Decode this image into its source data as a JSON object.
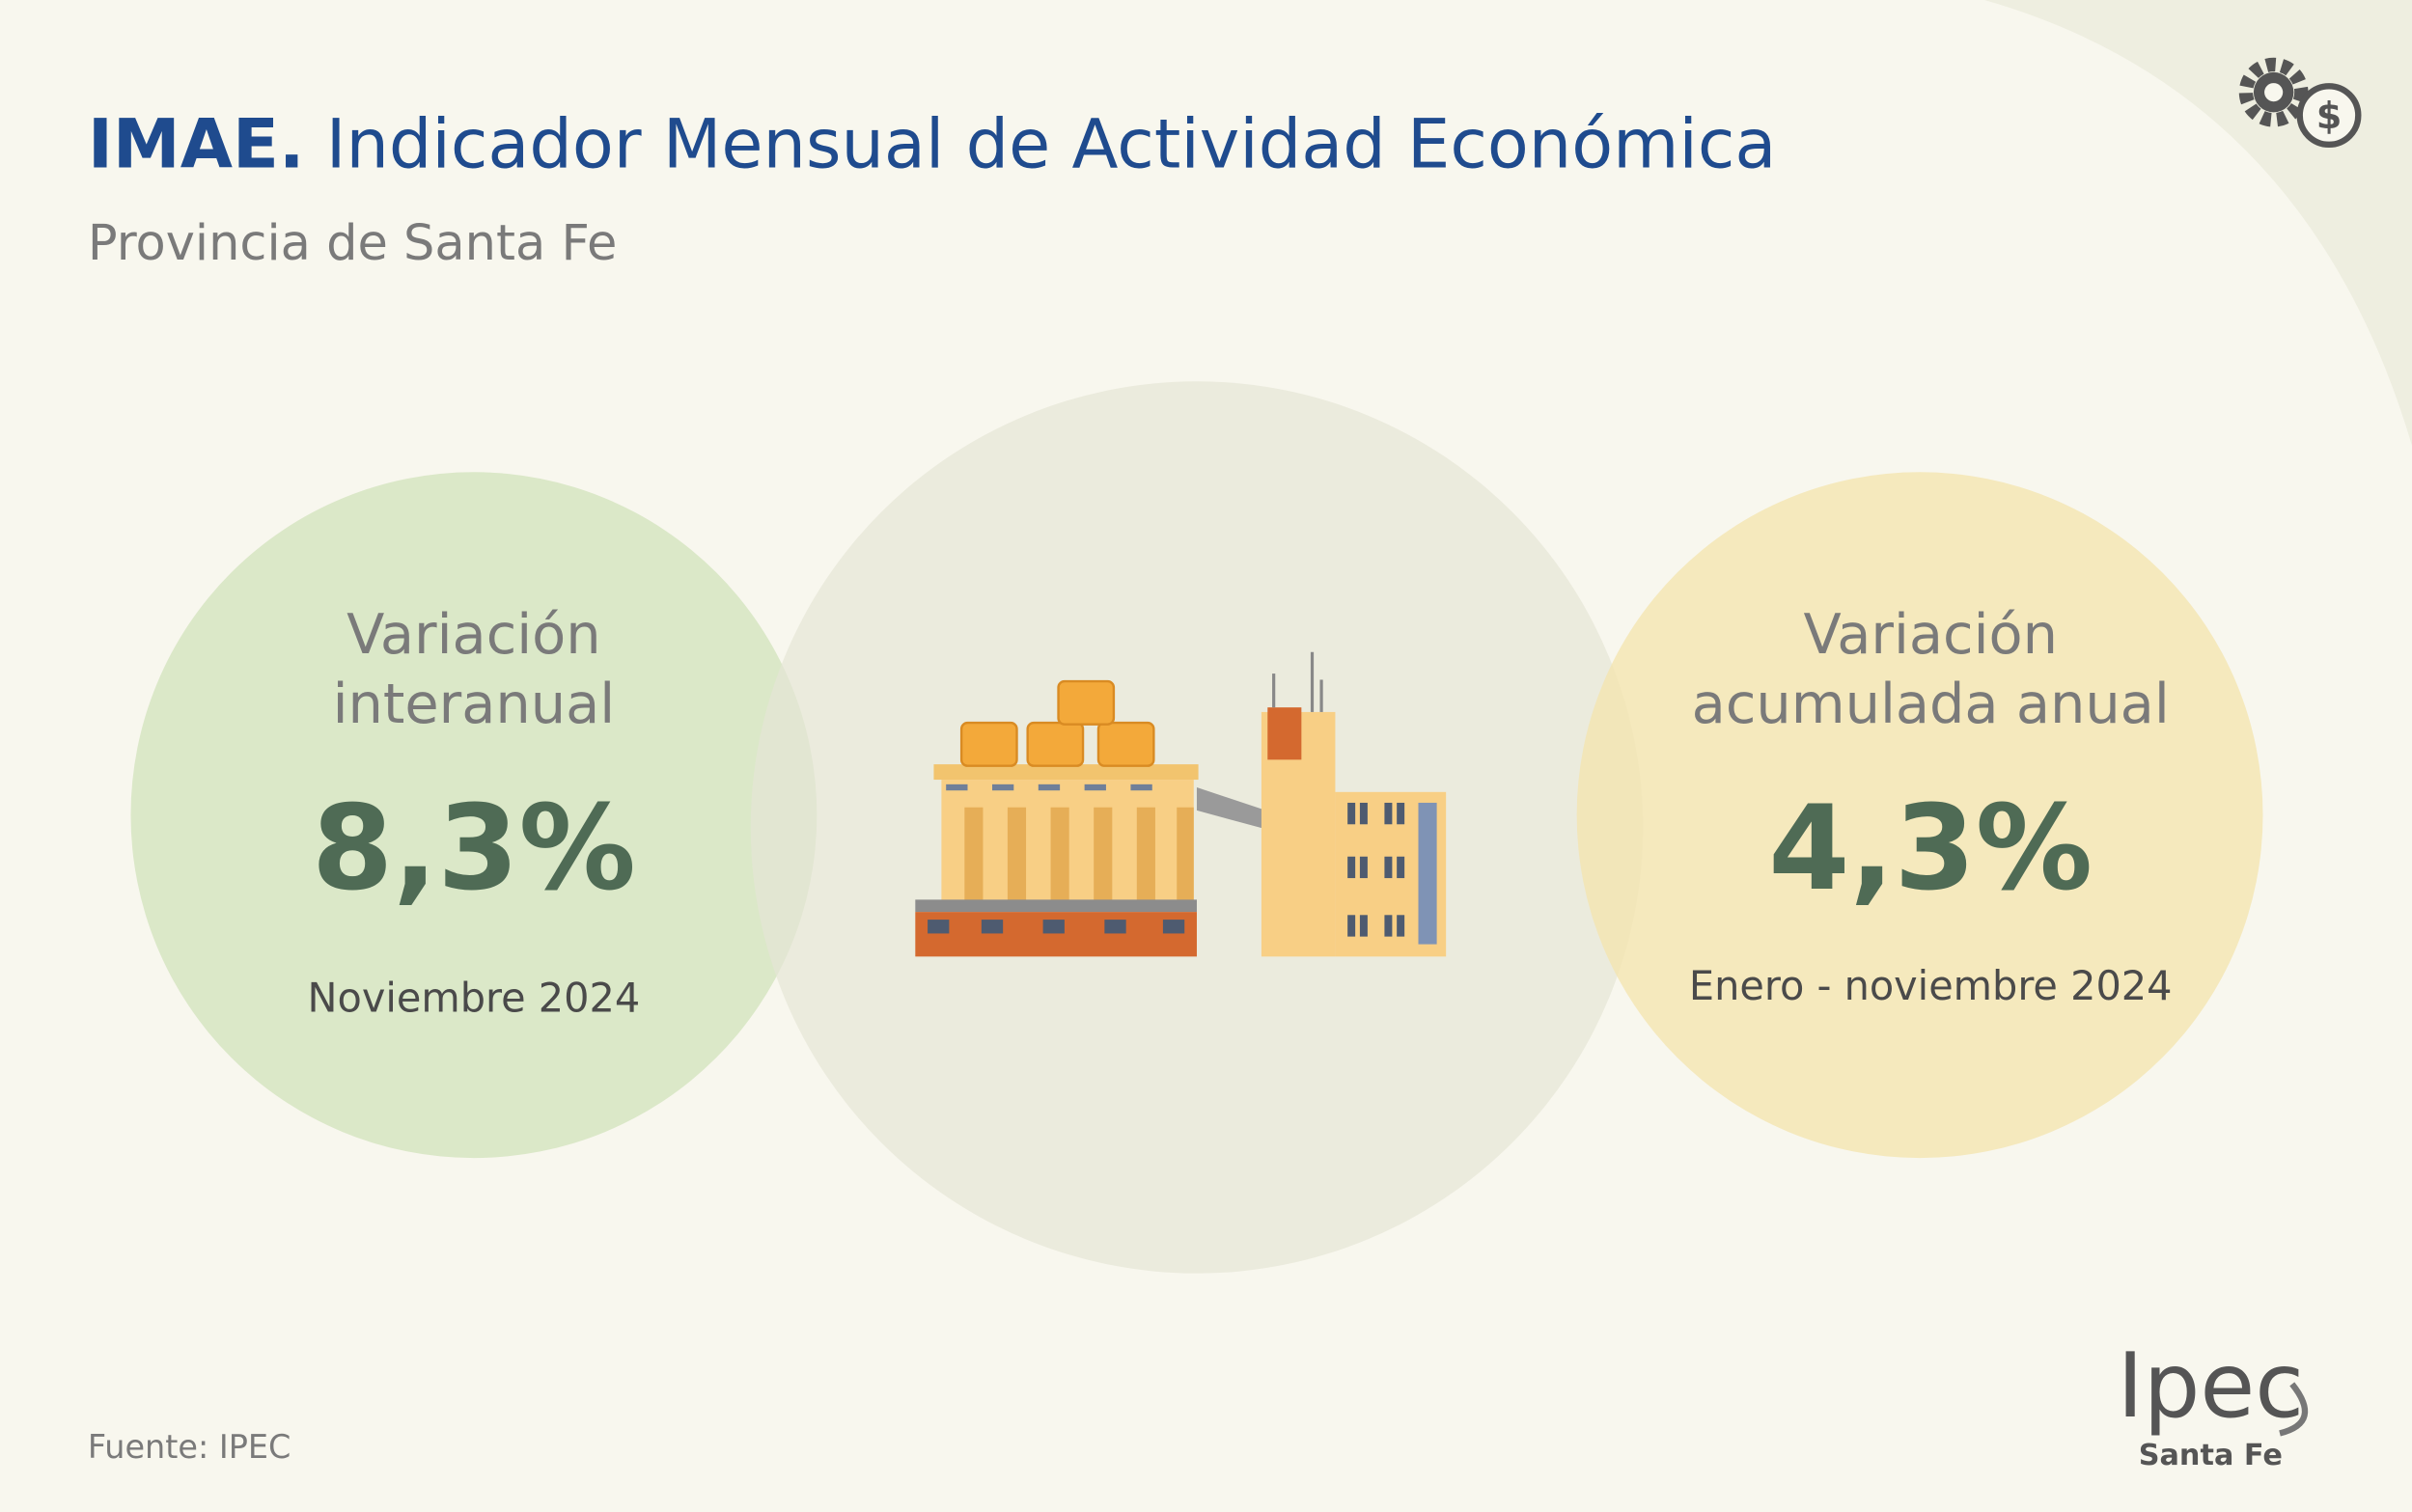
{
  "header": {
    "title_bold": "IMAE.",
    "title": "Indicador Mensual de Actividad Económica",
    "subtitle": "Provincia de Santa Fe"
  },
  "cards": [
    {
      "label_lines": [
        "Variación",
        "interanual"
      ],
      "value": "8,3%",
      "period": "Noviembre 2024"
    },
    {
      "label_lines": [
        "Variación",
        "acumulada anual"
      ],
      "value": "4,3%",
      "period": "Enero - noviembre 2024"
    }
  ],
  "footer": {
    "source": "Fuente: IPEC",
    "logo": "Ipec",
    "logo_sub": "Santa Fe"
  }
}
